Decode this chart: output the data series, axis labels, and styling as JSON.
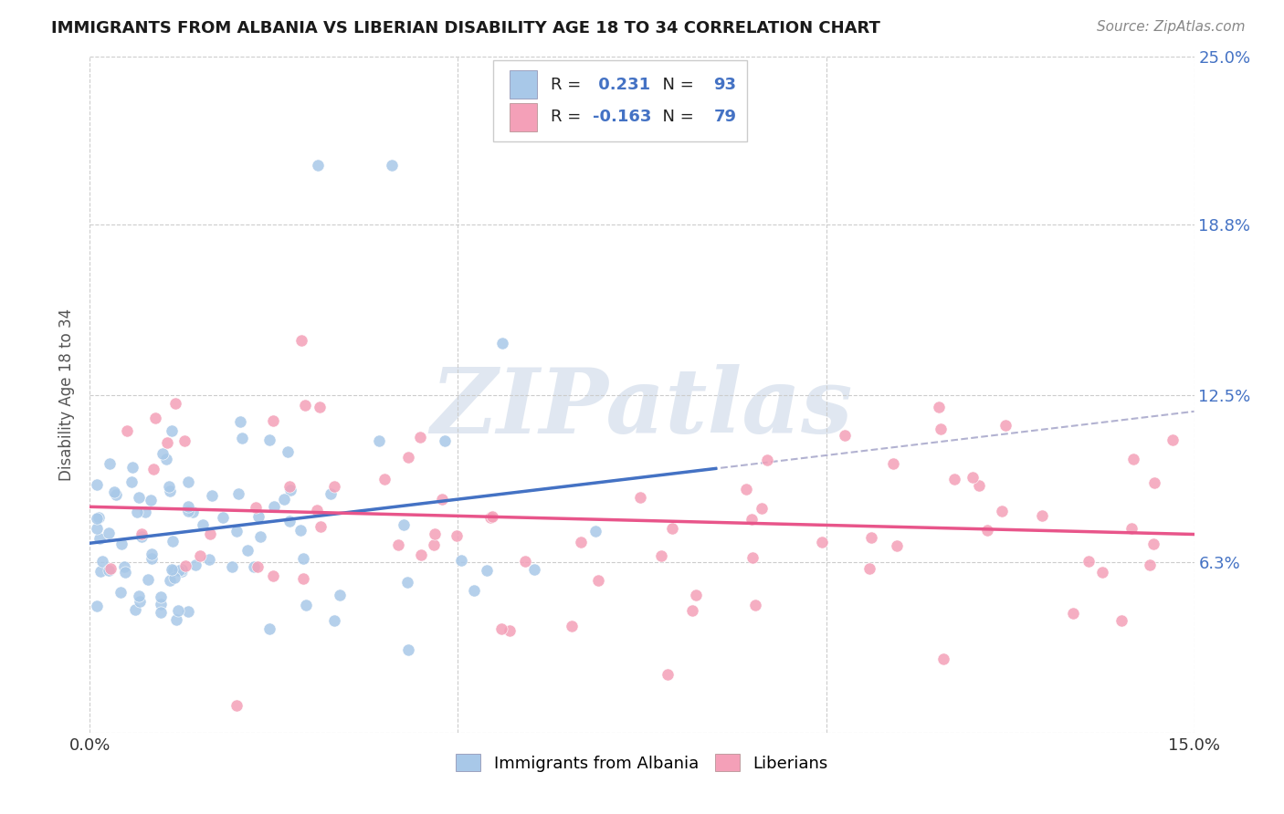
{
  "title": "IMMIGRANTS FROM ALBANIA VS LIBERIAN DISABILITY AGE 18 TO 34 CORRELATION CHART",
  "source": "Source: ZipAtlas.com",
  "ylabel": "Disability Age 18 to 34",
  "xlim": [
    0.0,
    0.15
  ],
  "ylim": [
    0.0,
    0.25
  ],
  "x_tick_vals": [
    0.0,
    0.05,
    0.1,
    0.15
  ],
  "x_tick_labels": [
    "0.0%",
    "",
    "",
    "15.0%"
  ],
  "y_tick_vals_right": [
    0.063,
    0.125,
    0.188,
    0.25
  ],
  "y_tick_labels_right": [
    "6.3%",
    "12.5%",
    "18.8%",
    "25.0%"
  ],
  "albania_R": 0.231,
  "albania_N": 93,
  "liberia_R": -0.163,
  "liberia_N": 79,
  "legend_label_albania": "Immigrants from Albania",
  "legend_label_liberia": "Liberians",
  "color_albania": "#a8c8e8",
  "color_liberia": "#f4a0b8",
  "color_albania_line": "#4472C4",
  "color_liberia_line": "#E8558A",
  "color_trend_dashed": "#aaaacc",
  "watermark_text": "ZIPatlas",
  "watermark_color": "#ccd8e8",
  "background_color": "#ffffff",
  "grid_color": "#cccccc",
  "title_fontsize": 13,
  "tick_fontsize": 13,
  "legend_fontsize": 13,
  "source_fontsize": 11
}
